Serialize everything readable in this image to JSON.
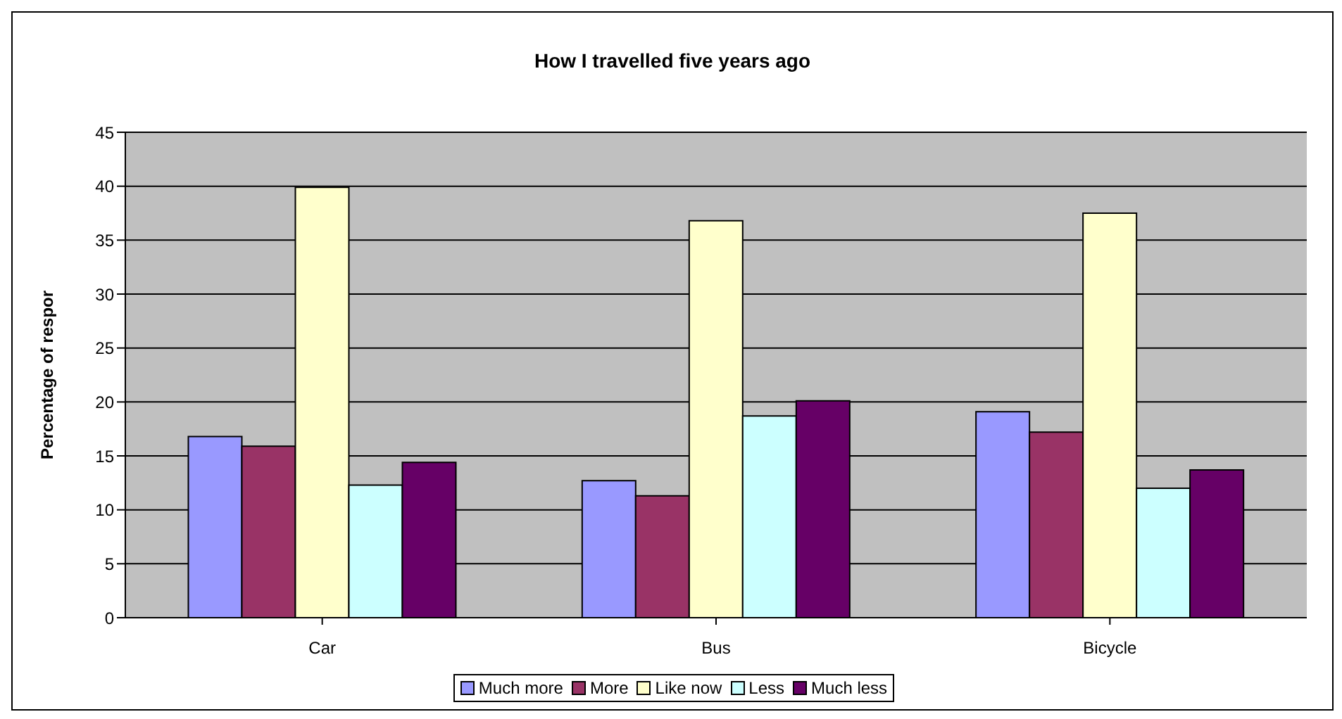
{
  "chart_data": {
    "type": "bar",
    "title": "How I travelled five years ago",
    "ylabel": "Percentage of respor",
    "categories": [
      "Car",
      "Bus",
      "Bicycle"
    ],
    "series": [
      {
        "name": "Much more",
        "color": "#9999ff",
        "values": [
          16.8,
          12.7,
          19.1
        ]
      },
      {
        "name": "More",
        "color": "#993366",
        "values": [
          15.9,
          11.3,
          17.2
        ]
      },
      {
        "name": "Like now",
        "color": "#ffffcc",
        "values": [
          39.9,
          36.8,
          37.5
        ]
      },
      {
        "name": "Less",
        "color": "#ccffff",
        "values": [
          12.3,
          18.7,
          12.0
        ]
      },
      {
        "name": "Much less",
        "color": "#660066",
        "values": [
          14.4,
          20.1,
          13.7
        ]
      }
    ],
    "ylim": [
      0,
      45
    ],
    "yticks": [
      0,
      5,
      10,
      15,
      20,
      25,
      30,
      35,
      40,
      45
    ],
    "grid": "y",
    "legend": "bottom"
  }
}
